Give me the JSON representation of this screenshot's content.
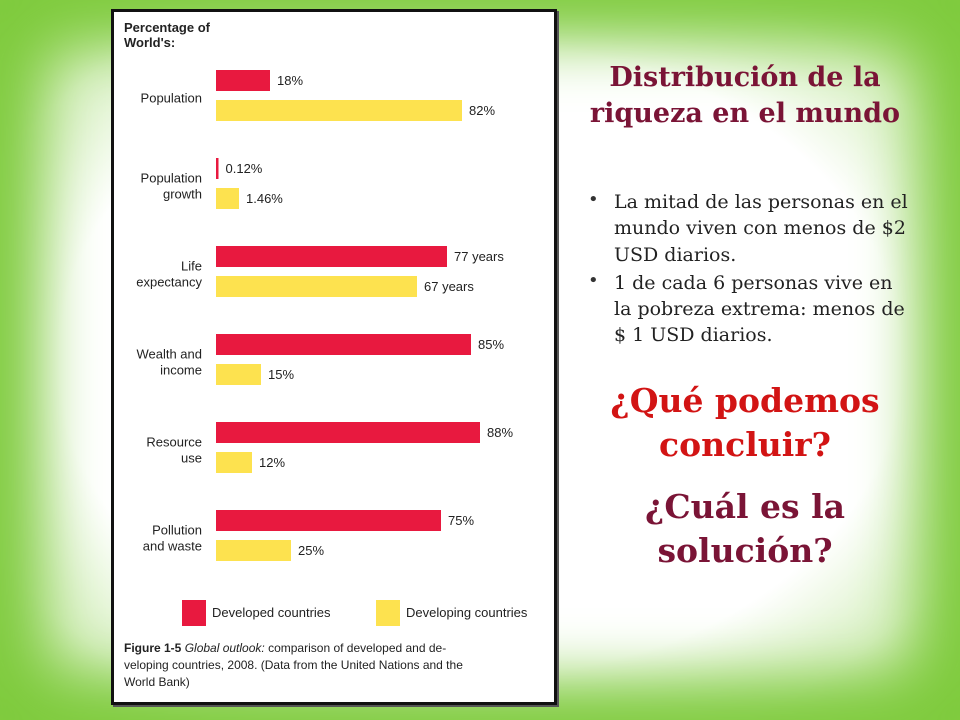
{
  "slide": {
    "title": "Distribución de la riqueza en el mundo",
    "bullets": [
      "La mitad de las personas en el mundo viven con menos de $2 USD diarios.",
      "1 de cada 6 personas vive en  la pobreza extrema: menos de $ 1 USD diarios."
    ],
    "question_1": "¿Qué podemos concluir?",
    "question_2": "¿Cuál es la solución?"
  },
  "colors": {
    "developed": "#e8193f",
    "developing": "#fde24f",
    "title": "#7a1436",
    "question_red": "#d21414",
    "frame_green": "#7fcb3e"
  },
  "chart_data": {
    "type": "bar",
    "orientation": "horizontal",
    "heading": [
      "Percentage of",
      "World's:"
    ],
    "categories": [
      {
        "label": [
          "Population"
        ],
        "developed": {
          "value": 18,
          "text": "18%"
        },
        "developing": {
          "value": 82,
          "text": "82%"
        }
      },
      {
        "label": [
          "Population",
          "growth"
        ],
        "developed": {
          "value": 0.12,
          "text": "0.12%"
        },
        "developing": {
          "value": 1.46,
          "text": "1.46%"
        }
      },
      {
        "label": [
          "Life",
          "expectancy"
        ],
        "developed": {
          "value": 77,
          "text": "77 years"
        },
        "developing": {
          "value": 67,
          "text": "67 years"
        }
      },
      {
        "label": [
          "Wealth and",
          "income"
        ],
        "developed": {
          "value": 85,
          "text": "85%"
        },
        "developing": {
          "value": 15,
          "text": "15%"
        }
      },
      {
        "label": [
          "Resource",
          "use"
        ],
        "developed": {
          "value": 88,
          "text": "88%"
        },
        "developing": {
          "value": 12,
          "text": "12%"
        }
      },
      {
        "label": [
          "Pollution",
          "and waste"
        ],
        "developed": {
          "value": 75,
          "text": "75%"
        },
        "developing": {
          "value": 25,
          "text": "25%"
        }
      }
    ],
    "legend": {
      "developed": "Developed countries",
      "developing": "Developing countries"
    },
    "caption": {
      "figure_label": "Figure 1-5",
      "italic": "Global outlook:",
      "lines": [
        " comparison of developed and de-",
        "veloping countries, 2008. (Data from the United Nations and the",
        "World Bank)"
      ]
    }
  }
}
